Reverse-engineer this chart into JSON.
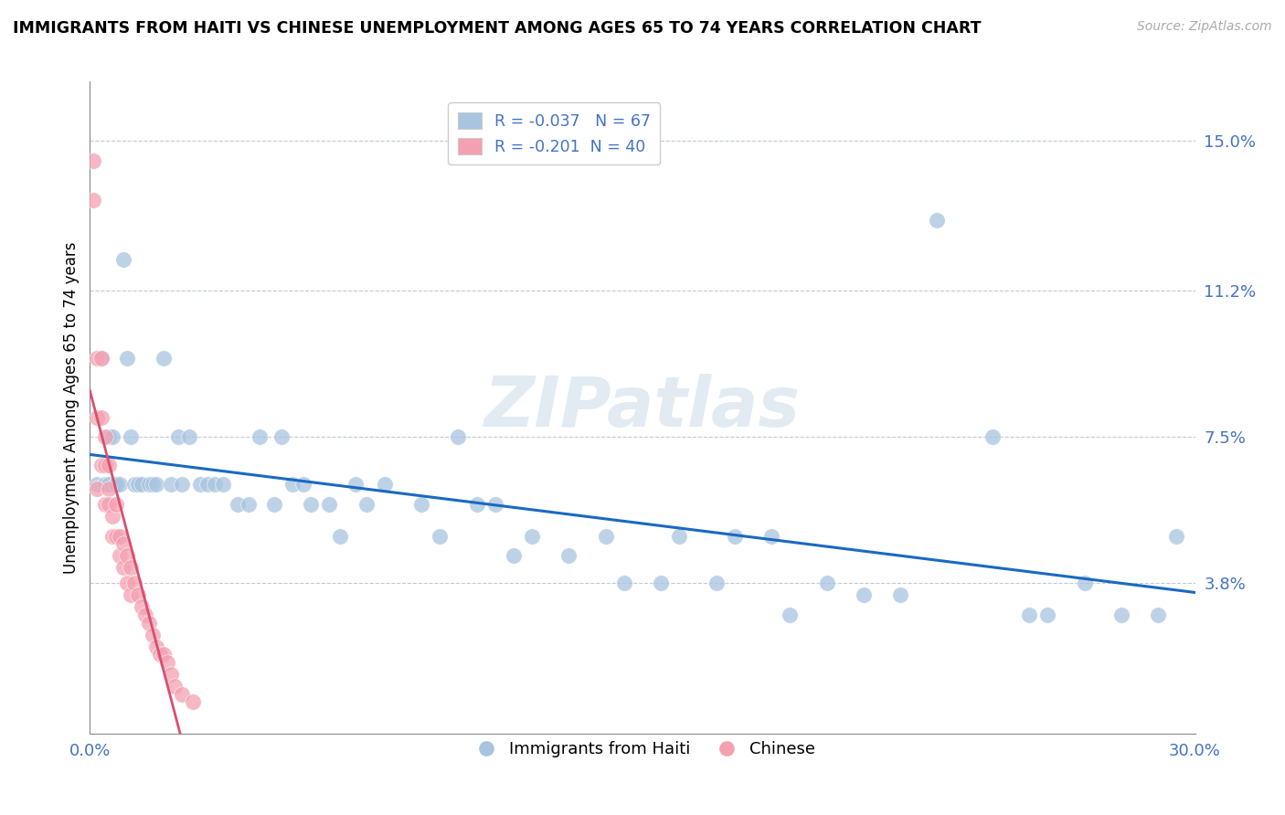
{
  "title": "IMMIGRANTS FROM HAITI VS CHINESE UNEMPLOYMENT AMONG AGES 65 TO 74 YEARS CORRELATION CHART",
  "source_text": "Source: ZipAtlas.com",
  "ylabel": "Unemployment Among Ages 65 to 74 years",
  "xlim": [
    0,
    0.3
  ],
  "ylim": [
    0,
    0.165
  ],
  "xticks": [
    0.0,
    0.3
  ],
  "xticklabels": [
    "0.0%",
    "30.0%"
  ],
  "yticks": [
    0.038,
    0.075,
    0.112,
    0.15
  ],
  "yticklabels": [
    "3.8%",
    "7.5%",
    "11.2%",
    "15.0%"
  ],
  "haiti_R": -0.037,
  "haiti_N": 67,
  "chinese_R": -0.201,
  "chinese_N": 40,
  "haiti_color": "#a8c4e0",
  "chinese_color": "#f4a0b0",
  "haiti_line_color": "#1a6abf",
  "chinese_line_color": "#d94f6e",
  "legend_haiti_label": "Immigrants from Haiti",
  "legend_chinese_label": "Chinese",
  "watermark": "ZIPatlas",
  "haiti_x": [
    0.002,
    0.003,
    0.004,
    0.005,
    0.005,
    0.006,
    0.007,
    0.007,
    0.008,
    0.009,
    0.01,
    0.011,
    0.012,
    0.013,
    0.014,
    0.016,
    0.017,
    0.018,
    0.02,
    0.022,
    0.024,
    0.025,
    0.027,
    0.03,
    0.032,
    0.034,
    0.036,
    0.04,
    0.043,
    0.046,
    0.05,
    0.052,
    0.055,
    0.058,
    0.06,
    0.065,
    0.068,
    0.072,
    0.075,
    0.08,
    0.09,
    0.095,
    0.1,
    0.105,
    0.11,
    0.115,
    0.12,
    0.13,
    0.14,
    0.145,
    0.155,
    0.16,
    0.17,
    0.175,
    0.185,
    0.19,
    0.2,
    0.21,
    0.22,
    0.23,
    0.245,
    0.255,
    0.26,
    0.27,
    0.28,
    0.29,
    0.295
  ],
  "haiti_y": [
    0.063,
    0.095,
    0.063,
    0.063,
    0.075,
    0.075,
    0.063,
    0.063,
    0.063,
    0.12,
    0.095,
    0.075,
    0.063,
    0.063,
    0.063,
    0.063,
    0.063,
    0.063,
    0.095,
    0.063,
    0.075,
    0.063,
    0.075,
    0.063,
    0.063,
    0.063,
    0.063,
    0.058,
    0.058,
    0.075,
    0.058,
    0.075,
    0.063,
    0.063,
    0.058,
    0.058,
    0.05,
    0.063,
    0.058,
    0.063,
    0.058,
    0.05,
    0.075,
    0.058,
    0.058,
    0.045,
    0.05,
    0.045,
    0.05,
    0.038,
    0.038,
    0.05,
    0.038,
    0.05,
    0.05,
    0.03,
    0.038,
    0.035,
    0.035,
    0.13,
    0.075,
    0.03,
    0.03,
    0.038,
    0.03,
    0.03,
    0.05
  ],
  "chinese_x": [
    0.001,
    0.001,
    0.002,
    0.002,
    0.002,
    0.003,
    0.003,
    0.003,
    0.004,
    0.004,
    0.004,
    0.005,
    0.005,
    0.005,
    0.006,
    0.006,
    0.007,
    0.007,
    0.008,
    0.008,
    0.009,
    0.009,
    0.01,
    0.01,
    0.011,
    0.011,
    0.012,
    0.013,
    0.014,
    0.015,
    0.016,
    0.017,
    0.018,
    0.019,
    0.02,
    0.021,
    0.022,
    0.023,
    0.025,
    0.028
  ],
  "chinese_y": [
    0.145,
    0.135,
    0.095,
    0.08,
    0.062,
    0.095,
    0.08,
    0.068,
    0.075,
    0.068,
    0.058,
    0.068,
    0.062,
    0.058,
    0.055,
    0.05,
    0.058,
    0.05,
    0.05,
    0.045,
    0.048,
    0.042,
    0.045,
    0.038,
    0.042,
    0.035,
    0.038,
    0.035,
    0.032,
    0.03,
    0.028,
    0.025,
    0.022,
    0.02,
    0.02,
    0.018,
    0.015,
    0.012,
    0.01,
    0.008
  ]
}
